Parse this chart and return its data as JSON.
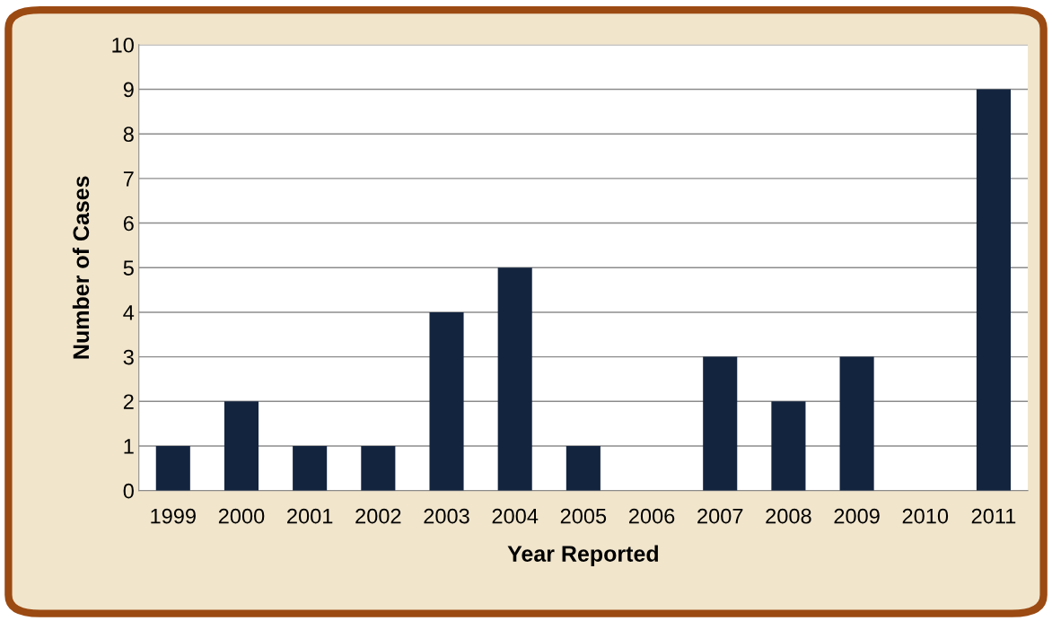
{
  "chart_data": {
    "type": "bar",
    "xlabel": "Year Reported",
    "ylabel": "Number of Cases",
    "categories": [
      "1999",
      "2000",
      "2001",
      "2002",
      "2003",
      "2004",
      "2005",
      "2006",
      "2007",
      "2008",
      "2009",
      "2010",
      "2011"
    ],
    "values": [
      1,
      2,
      1,
      1,
      4,
      5,
      1,
      0,
      3,
      2,
      3,
      0,
      9
    ],
    "color": "#13243f",
    "ylim": [
      0,
      10
    ],
    "yticks": [
      0,
      1,
      2,
      3,
      4,
      5,
      6,
      7,
      8,
      9,
      10
    ],
    "grid": "y",
    "legend": false
  }
}
